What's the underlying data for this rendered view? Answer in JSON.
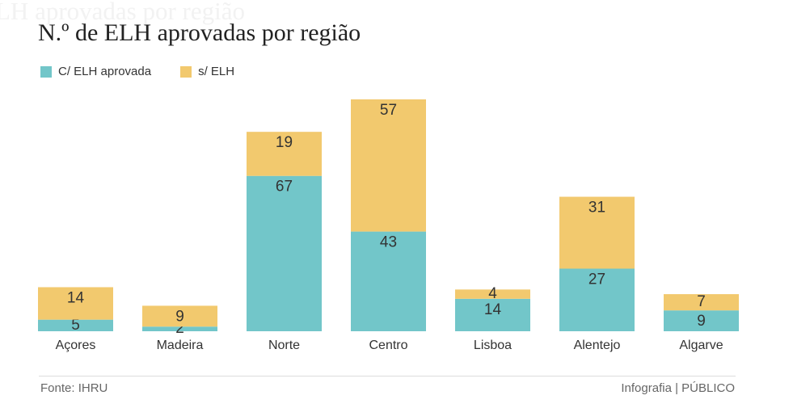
{
  "chart_data": {
    "type": "bar",
    "stacked": true,
    "title": "N.º de ELH aprovadas por região",
    "categories": [
      "Açores",
      "Madeira",
      "Norte",
      "Centro",
      "Lisboa",
      "Alentejo",
      "Algarve"
    ],
    "series": [
      {
        "name": "C/ ELH aprovada",
        "color": "#72c6c9",
        "values": [
          5,
          2,
          67,
          43,
          14,
          27,
          9
        ]
      },
      {
        "name": "s/ ELH",
        "color": "#f2c96e",
        "values": [
          14,
          9,
          19,
          57,
          4,
          31,
          7
        ]
      }
    ],
    "xlabel": "",
    "ylabel": "",
    "ylim": [
      0,
      100
    ],
    "grid": false,
    "legend_position": "top-left"
  },
  "ghost": {
    "title": "LH aprovadas por região"
  },
  "footer": {
    "source": "Fonte: IHRU",
    "credit": "Infografia | PÚBLICO"
  }
}
